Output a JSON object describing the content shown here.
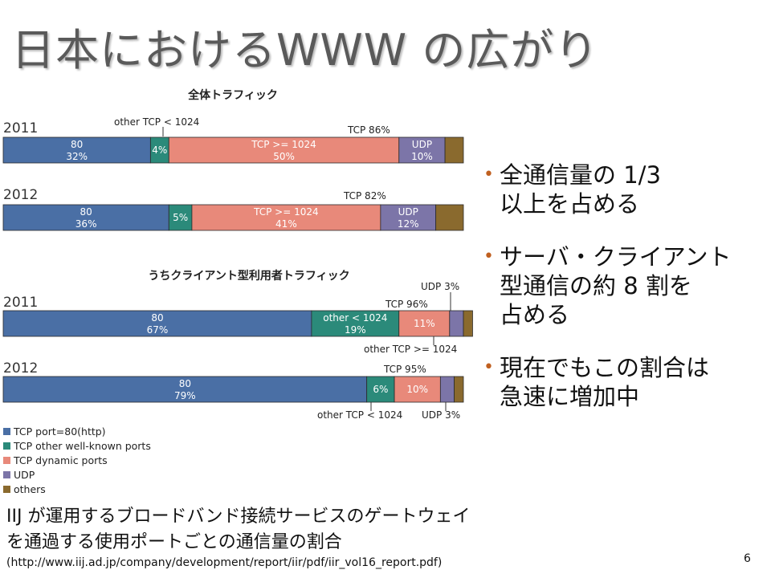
{
  "slide": {
    "title": "日本におけるWWW の広がり",
    "page_number": "6",
    "caption": "IIJ が運用するブロードバンド接続サービスのゲートウェイ\nを通過する使用ポートごとの通信量の割合",
    "url": "(http://www.iij.ad.jp/company/development/report/iir/pdf/iir_vol16_report.pdf)",
    "bullets": [
      "全通信量の 1/3\n以上を占める",
      "サーバ・クライアント\n型通信の約 8 割を\n占める",
      "現在でもこの割合は\n急速に増加中"
    ]
  },
  "colors": {
    "80": "#4a6fa5",
    "well_known": "#2b8a7a",
    "dynamic": "#e8897a",
    "udp": "#7c75a8",
    "others": "#8a6a2e"
  },
  "chart_data": [
    {
      "type": "stacked-bar",
      "title": "全体トラフィック",
      "categories": [
        "2011",
        "2012"
      ],
      "series": [
        {
          "key": "80",
          "values": [
            32,
            36
          ]
        },
        {
          "key": "well_known",
          "values": [
            4,
            5
          ]
        },
        {
          "key": "dynamic",
          "values": [
            50,
            41
          ]
        },
        {
          "key": "udp",
          "values": [
            10,
            12
          ]
        },
        {
          "key": "others",
          "values": [
            4,
            6
          ]
        }
      ],
      "segment_labels": [
        [
          [
            "80",
            "32%"
          ],
          [
            "4%"
          ],
          [
            "TCP >= 1024",
            "50%"
          ],
          [
            "UDP",
            "10%"
          ],
          []
        ],
        [
          [
            "80",
            "36%"
          ],
          [
            "5%"
          ],
          [
            "TCP >= 1024",
            "41%"
          ],
          [
            "UDP",
            "12%"
          ],
          []
        ]
      ],
      "annotations": [
        [
          "other TCP < 1024",
          "TCP 86%"
        ],
        [
          "TCP 82%"
        ]
      ],
      "xlim": [
        0,
        100
      ]
    },
    {
      "type": "stacked-bar",
      "title": "うちクライアント型利用者トラフィック",
      "categories": [
        "2011",
        "2012"
      ],
      "series": [
        {
          "key": "80",
          "values": [
            67,
            79
          ]
        },
        {
          "key": "well_known",
          "values": [
            19,
            6
          ]
        },
        {
          "key": "dynamic",
          "values": [
            11,
            10
          ]
        },
        {
          "key": "udp",
          "values": [
            3,
            3
          ]
        },
        {
          "key": "others",
          "values": [
            2,
            2
          ]
        }
      ],
      "segment_labels": [
        [
          [
            "80",
            "67%"
          ],
          [
            "other < 1024",
            "19%"
          ],
          [
            "11%"
          ],
          [],
          []
        ],
        [
          [
            "80",
            "79%"
          ],
          [
            "6%"
          ],
          [
            "10%"
          ],
          [],
          []
        ]
      ],
      "annotations": [
        [
          "UDP 3%",
          "TCP 96%",
          "other TCP >= 1024"
        ],
        [
          "TCP 95%",
          "other TCP < 1024",
          "UDP 3%"
        ]
      ],
      "xlim": [
        0,
        100
      ]
    }
  ],
  "legend": [
    {
      "key": "80",
      "label": "TCP port=80(http)"
    },
    {
      "key": "well_known",
      "label": "TCP other well-known ports"
    },
    {
      "key": "dynamic",
      "label": "TCP dynamic ports"
    },
    {
      "key": "udp",
      "label": "UDP"
    },
    {
      "key": "others",
      "label": "others"
    }
  ]
}
